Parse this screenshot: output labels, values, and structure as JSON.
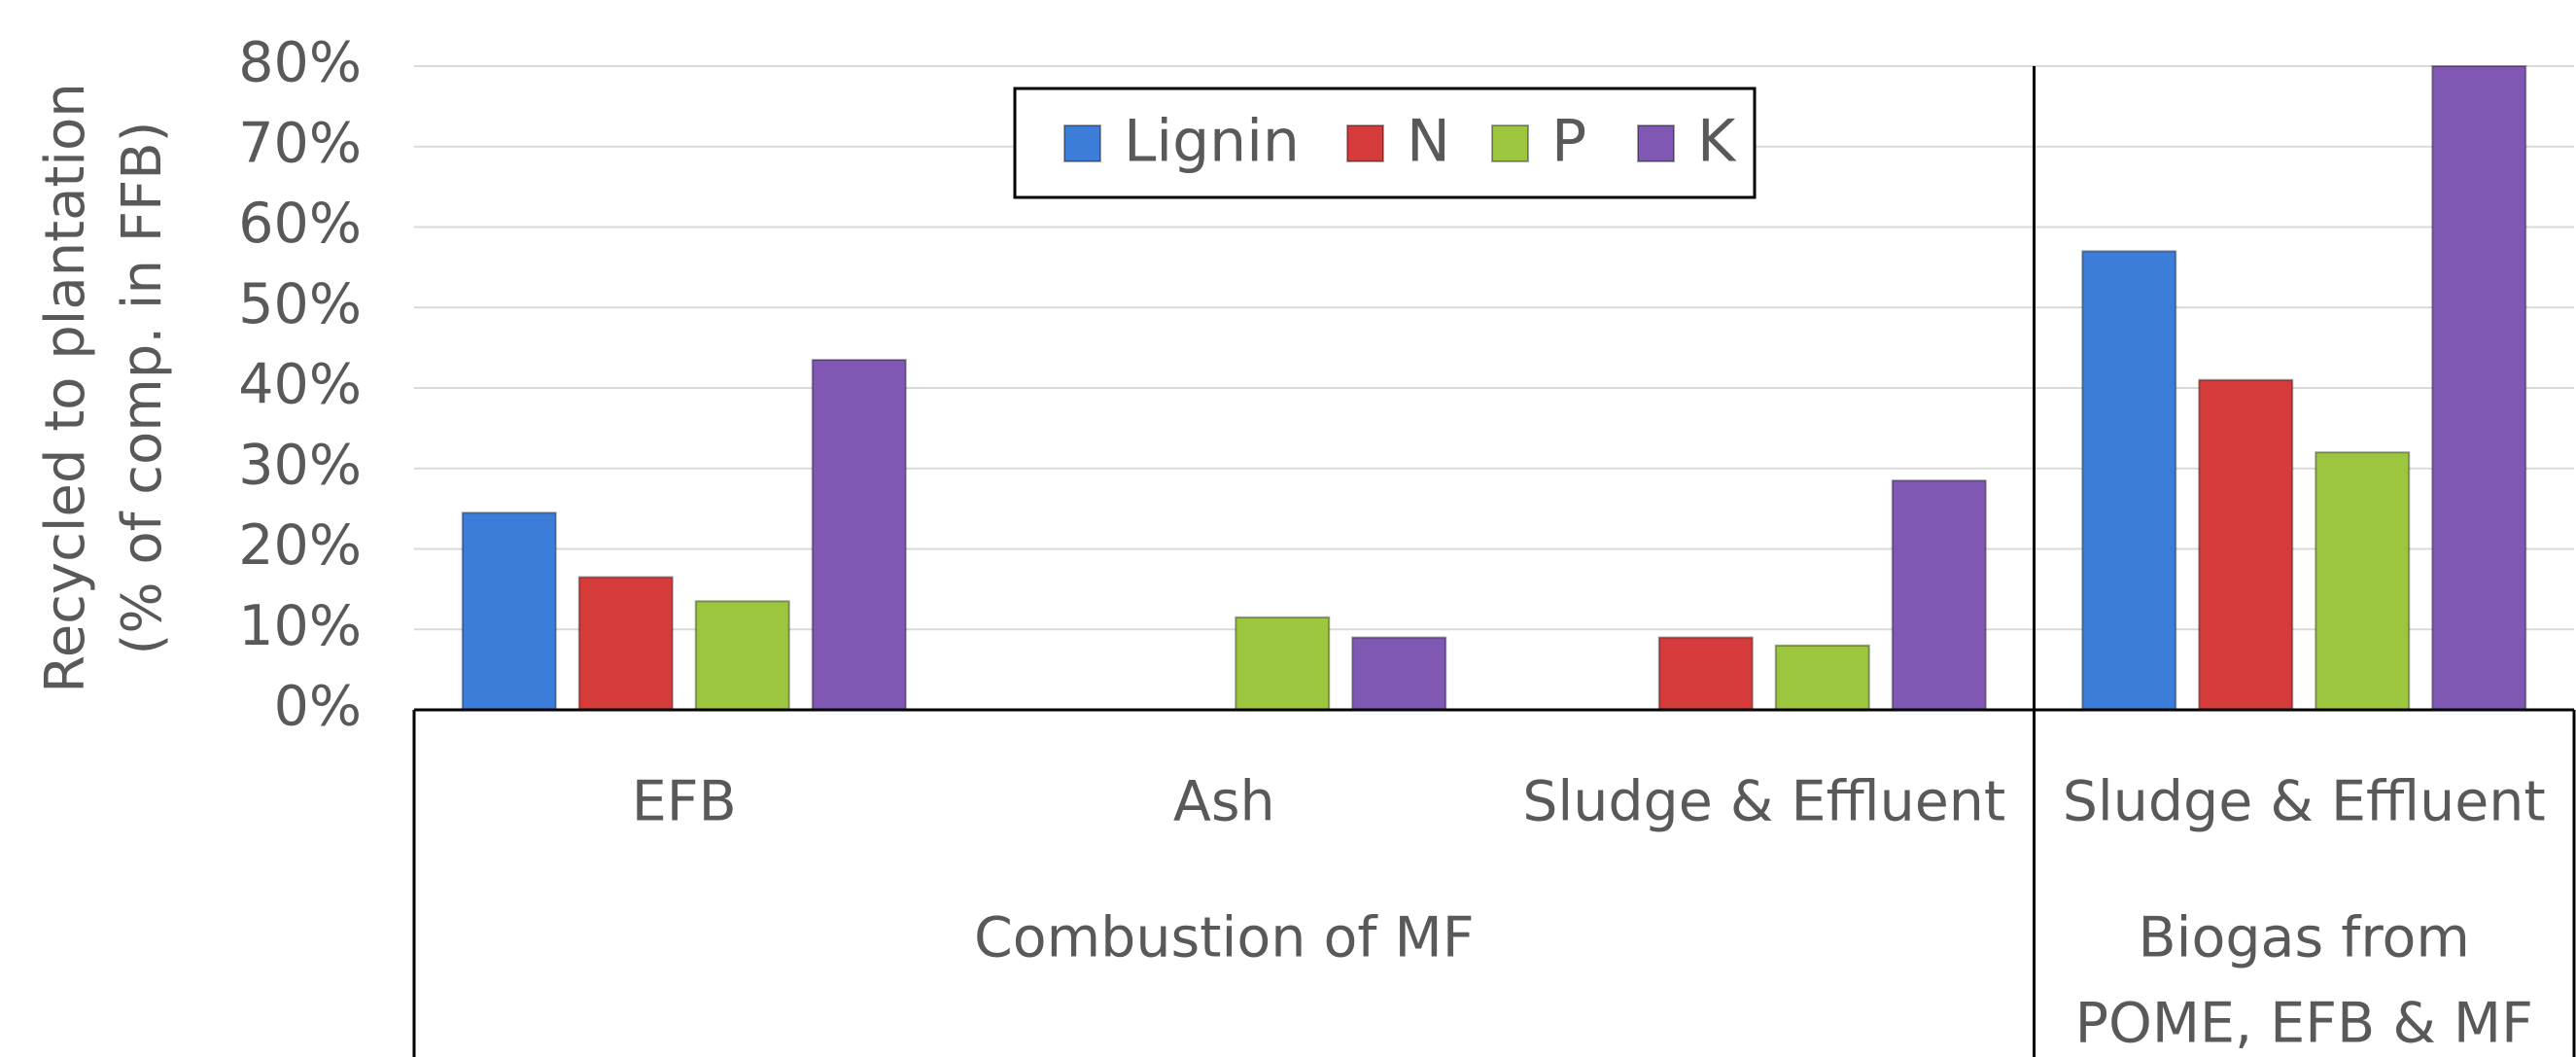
{
  "chart_data": {
    "type": "bar",
    "y_label_lines": [
      "Recycled to plantation",
      "(% of comp. in FFB)"
    ],
    "groups": [
      {
        "name_lines": [
          "Combustion of MF"
        ],
        "categories": [
          "EFB",
          "Ash",
          "Sludge & Effluent"
        ]
      },
      {
        "name_lines": [
          "Biogas from",
          "POME, EFB & MF"
        ],
        "categories": [
          "Sludge & Effluent"
        ]
      }
    ],
    "series": [
      {
        "name": "Lignin",
        "color": "#3b7dd8",
        "values": [
          24.5,
          null,
          null,
          57
        ]
      },
      {
        "name": "N",
        "color": "#d63b3b",
        "values": [
          16.5,
          null,
          9,
          41
        ]
      },
      {
        "name": "P",
        "color": "#9cc63e",
        "values": [
          13.5,
          11.5,
          8,
          32
        ]
      },
      {
        "name": "K",
        "color": "#8057b3",
        "values": [
          43.5,
          9,
          28.5,
          80
        ]
      }
    ],
    "ylim": [
      0,
      80
    ],
    "yticks": [
      {
        "value": 0,
        "label": "0%"
      },
      {
        "value": 10,
        "label": "10%"
      },
      {
        "value": 20,
        "label": "20%"
      },
      {
        "value": 30,
        "label": "30%"
      },
      {
        "value": 40,
        "label": "40%"
      },
      {
        "value": 50,
        "label": "50%"
      },
      {
        "value": 60,
        "label": "60%"
      },
      {
        "value": 70,
        "label": "70%"
      },
      {
        "value": 80,
        "label": "80%"
      }
    ],
    "grid": true,
    "legend": "top"
  }
}
